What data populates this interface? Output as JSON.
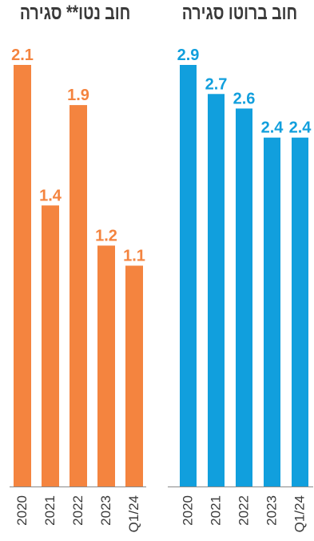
{
  "chart_data": [
    {
      "type": "bar",
      "title": "חוב נטו** סגירה",
      "categories": [
        "2020",
        "2021",
        "2022",
        "2023",
        "Q1/24"
      ],
      "values": [
        2.1,
        1.4,
        1.9,
        1.2,
        1.1
      ],
      "color": "#f4843f",
      "ylim": [
        0,
        2.1
      ],
      "grid": false
    },
    {
      "type": "bar",
      "title": "חוב ברוטו סגירה",
      "categories": [
        "2020",
        "2021",
        "2022",
        "2023",
        "Q1/24"
      ],
      "values": [
        2.9,
        2.7,
        2.6,
        2.4,
        2.4
      ],
      "color": "#119fdd",
      "ylim": [
        0,
        2.9
      ],
      "grid": false
    }
  ]
}
